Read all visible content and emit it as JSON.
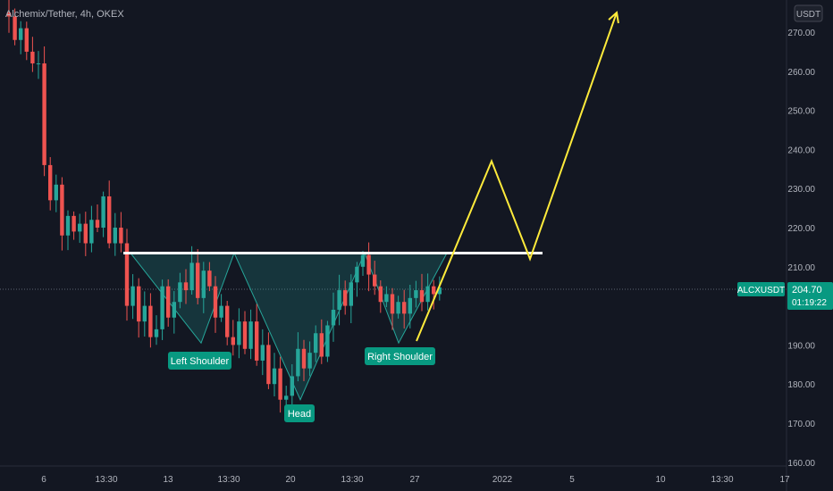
{
  "header": {
    "symbol_title": "Alchemix/Tether, 4h, OKEX"
  },
  "price_axis": {
    "currency_label": "USDT",
    "ticks": [
      "270.00",
      "260.00",
      "250.00",
      "240.00",
      "230.00",
      "220.00",
      "210.00",
      "200.00",
      "190.00",
      "180.00",
      "170.00",
      "160.00"
    ]
  },
  "time_axis": {
    "ticks": [
      "6",
      "13:30",
      "13",
      "13:30",
      "20",
      "13:30",
      "27",
      "2022",
      "5",
      "10",
      "13:30",
      "17"
    ]
  },
  "ticker": {
    "symbol": "ALCXUSDT",
    "price": "204.70",
    "countdown": "01:19:22"
  },
  "annotations": {
    "left_shoulder": "Left Shoulder",
    "head": "Head",
    "right_shoulder": "Right Shoulder"
  },
  "colors": {
    "background": "#131722",
    "up": "#26a69a",
    "down": "#ef5350",
    "teal_label": "#089981",
    "projection": "#ffeb3b",
    "neckline": "#ffffff"
  },
  "chart_data": {
    "type": "candlestick",
    "title": "Alchemix/Tether, 4h, OKEX",
    "xlabel": "",
    "ylabel": "",
    "ylim": [
      159,
      280
    ],
    "y_unit": "USDT",
    "grid": false,
    "current_price": 204.7,
    "pattern": "inverse head and shoulders",
    "neckline_price": 213.5,
    "left_shoulder_low": 190.5,
    "head_low": 176,
    "right_shoulder_low": 190.5,
    "projection_path": [
      213,
      237,
      212,
      275
    ],
    "close_path": [
      275,
      274,
      268,
      271,
      265,
      262,
      262,
      236,
      227,
      231,
      218,
      223,
      219,
      221,
      216,
      222,
      220,
      228,
      216,
      220,
      216,
      200,
      205,
      196,
      200,
      192,
      194,
      205,
      197,
      201,
      206,
      204,
      211,
      202,
      209,
      205,
      197,
      200,
      192,
      190,
      196,
      189,
      196,
      186,
      190,
      180,
      184,
      176,
      177,
      182,
      189,
      184,
      188,
      193,
      187,
      195,
      199,
      204,
      200,
      206,
      210,
      213,
      208,
      205,
      201,
      203,
      198,
      201,
      198,
      202,
      204,
      201,
      205,
      203,
      204.7
    ],
    "candles": []
  }
}
